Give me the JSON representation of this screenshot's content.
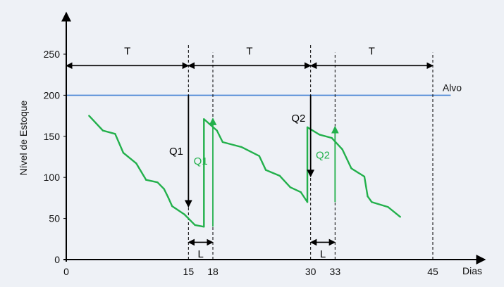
{
  "chart_data": {
    "type": "line",
    "xlabel": "Dias",
    "ylabel": "Nível de Estoque",
    "xlim": [
      0,
      45
    ],
    "ylim": [
      0,
      250
    ],
    "x_ticks": [
      {
        "value": 0,
        "label": "0"
      },
      {
        "value": 15,
        "label": "15"
      },
      {
        "value": 18,
        "label": "18"
      },
      {
        "value": 30,
        "label": "30"
      },
      {
        "value": 33,
        "label": "33"
      },
      {
        "value": 45,
        "label": "45"
      }
    ],
    "y_ticks": [
      {
        "value": 0,
        "label": "0"
      },
      {
        "value": 50,
        "label": "50"
      },
      {
        "value": 100,
        "label": "100"
      },
      {
        "value": 150,
        "label": "150"
      },
      {
        "value": 200,
        "label": "200"
      },
      {
        "value": 250,
        "label": "250"
      }
    ],
    "grid": false,
    "reference_line": {
      "label": "Alvo",
      "y": 200,
      "color": "#4a86d6"
    },
    "series": [
      {
        "color": "#22b04b",
        "points": [
          {
            "x": 2.8,
            "y": 175
          },
          {
            "x": 4.5,
            "y": 157
          },
          {
            "x": 6.0,
            "y": 153
          },
          {
            "x": 7.0,
            "y": 130
          },
          {
            "x": 8.6,
            "y": 117
          },
          {
            "x": 9.8,
            "y": 97
          },
          {
            "x": 11.2,
            "y": 94
          },
          {
            "x": 12.0,
            "y": 86
          },
          {
            "x": 12.5,
            "y": 76
          },
          {
            "x": 13.0,
            "y": 65
          },
          {
            "x": 14.5,
            "y": 55
          },
          {
            "x": 15.8,
            "y": 42
          },
          {
            "x": 16.9,
            "y": 40
          },
          {
            "x": 16.9,
            "y": 171
          },
          {
            "x": 18.5,
            "y": 157
          },
          {
            "x": 19.2,
            "y": 143
          },
          {
            "x": 21.5,
            "y": 137
          },
          {
            "x": 23.7,
            "y": 126
          },
          {
            "x": 24.5,
            "y": 109
          },
          {
            "x": 26.2,
            "y": 102
          },
          {
            "x": 27.5,
            "y": 88
          },
          {
            "x": 28.8,
            "y": 82
          },
          {
            "x": 29.6,
            "y": 70
          },
          {
            "x": 29.6,
            "y": 161
          },
          {
            "x": 31.1,
            "y": 152
          },
          {
            "x": 32.6,
            "y": 148
          },
          {
            "x": 33.9,
            "y": 134
          },
          {
            "x": 35.0,
            "y": 111
          },
          {
            "x": 36.6,
            "y": 101
          },
          {
            "x": 37.0,
            "y": 77
          },
          {
            "x": 37.5,
            "y": 70
          },
          {
            "x": 39.5,
            "y": 64
          },
          {
            "x": 41.0,
            "y": 52
          }
        ]
      }
    ],
    "annotations": [
      {
        "type": "vline",
        "label": "",
        "x": 15,
        "y0": 0,
        "y1": 262
      },
      {
        "type": "vline",
        "label": "",
        "x": 18,
        "y0": 0,
        "y1": 252
      },
      {
        "type": "vline",
        "label": "",
        "x": 30,
        "y0": 0,
        "y1": 262
      },
      {
        "type": "vline",
        "label": "",
        "x": 33,
        "y0": 0,
        "y1": 252
      },
      {
        "type": "vline",
        "label": "",
        "x": 45,
        "y0": 0,
        "y1": 252
      },
      {
        "type": "interval",
        "label": "T",
        "x0": 0,
        "x1": 15,
        "y": 236,
        "label_y": 254,
        "color": "#000000"
      },
      {
        "type": "interval",
        "label": "T",
        "x0": 15,
        "x1": 30,
        "y": 236,
        "label_y": 254,
        "color": "#000000"
      },
      {
        "type": "interval",
        "label": "T",
        "x0": 30,
        "x1": 45,
        "y": 236,
        "label_y": 254,
        "color": "#000000"
      },
      {
        "type": "interval",
        "label": "L",
        "x0": 15,
        "x1": 18,
        "y": 21,
        "label_y": 7,
        "color": "#000000"
      },
      {
        "type": "interval",
        "label": "L",
        "x0": 30,
        "x1": 33,
        "y": 21,
        "label_y": 7,
        "color": "#000000"
      },
      {
        "type": "quantity",
        "label": "Q1",
        "x": 15,
        "y0": 200,
        "y1": 65,
        "label_x": 13.5,
        "label_y": 132,
        "color": "#000000"
      },
      {
        "type": "quantity",
        "label": "Q1",
        "x": 18,
        "y0": 40,
        "y1": 171,
        "label_x": 16.5,
        "label_y": 120,
        "color": "#22b04b"
      },
      {
        "type": "quantity",
        "label": "Q2",
        "x": 30,
        "y0": 200,
        "y1": 102,
        "label_x": 28.5,
        "label_y": 172,
        "color": "#000000"
      },
      {
        "type": "quantity",
        "label": "Q2",
        "x": 33,
        "y0": 70,
        "y1": 161,
        "label_x": 31.5,
        "label_y": 127,
        "color": "#22b04b"
      }
    ]
  }
}
